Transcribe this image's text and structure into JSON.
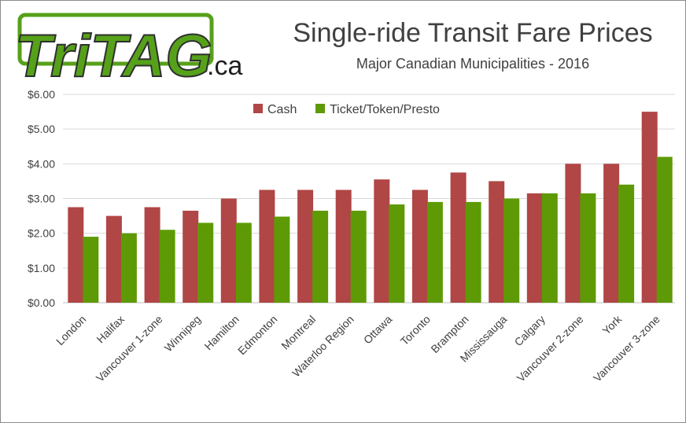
{
  "logo": {
    "text_main": "TriTAG",
    "text_domain": ".ca",
    "color": "#56a11a"
  },
  "chart_data": {
    "type": "bar",
    "title": "Single-ride Transit Fare Prices",
    "subtitle": "Major Canadian Municipalities - 2016",
    "categories": [
      "London",
      "Halifax",
      "Vancouver 1-zone",
      "Winnipeg",
      "Hamilton",
      "Edmonton",
      "Montreal",
      "Waterloo Region",
      "Ottawa",
      "Toronto",
      "Brampton",
      "Mississauga",
      "Calgary",
      "Vancouver 2-zone",
      "York",
      "Vancouver 3-zone"
    ],
    "series": [
      {
        "name": "Cash",
        "color": "#b04645",
        "values": [
          2.75,
          2.5,
          2.75,
          2.65,
          3.0,
          3.25,
          3.25,
          3.25,
          3.55,
          3.25,
          3.75,
          3.5,
          3.15,
          4.0,
          4.0,
          5.5
        ]
      },
      {
        "name": "Ticket/Token/Presto",
        "color": "#5e9a05",
        "values": [
          1.9,
          2.0,
          2.1,
          2.3,
          2.3,
          2.48,
          2.65,
          2.65,
          2.83,
          2.9,
          2.9,
          3.0,
          3.15,
          3.15,
          3.4,
          4.2
        ]
      }
    ],
    "ylim": [
      0,
      6
    ],
    "yticks": [
      "$0.00",
      "$1.00",
      "$2.00",
      "$3.00",
      "$4.00",
      "$5.00",
      "$6.00"
    ],
    "grid": true,
    "legend_position": "top-center"
  }
}
